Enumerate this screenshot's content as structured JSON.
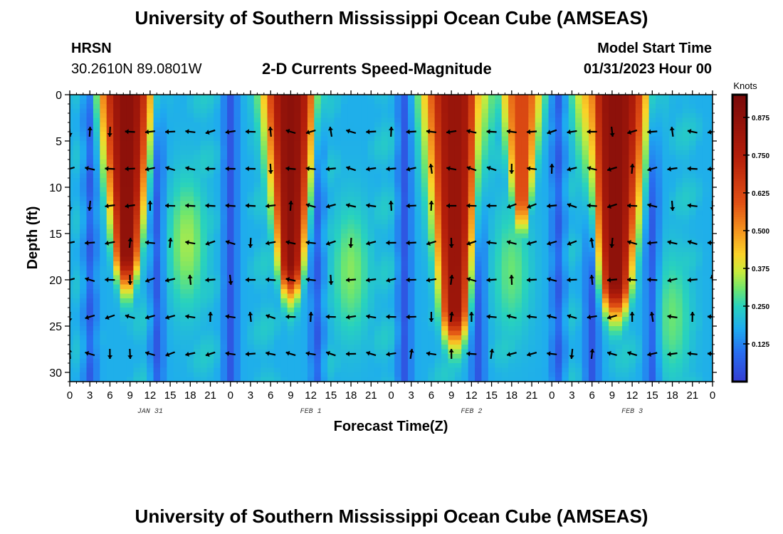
{
  "page": {
    "title": "University of Southern Mississippi Ocean Cube (AMSEAS)",
    "station": "HRSN",
    "coords": "30.2610N  89.0801W",
    "subtitle": "2-D Currents Speed-Magnitude",
    "start_label": "Model Start Time",
    "start_value": "01/31/2023 Hour 00"
  },
  "chart_data": {
    "type": "heatmap",
    "title": "2-D Currents Speed-Magnitude",
    "xlabel": "Forecast Time(Z)",
    "ylabel": "Depth (ft)",
    "xlim": [
      0,
      96
    ],
    "ylim": [
      31,
      0
    ],
    "x_ticks": [
      0,
      3,
      6,
      9,
      12,
      15,
      18,
      21,
      24,
      27,
      30,
      33,
      36,
      39,
      42,
      45,
      48,
      51,
      54,
      57,
      60,
      63,
      66,
      69,
      72,
      75,
      78,
      81,
      84,
      87,
      90,
      93,
      96
    ],
    "x_tick_labels": [
      "0",
      "3",
      "6",
      "9",
      "12",
      "15",
      "18",
      "21",
      "0",
      "3",
      "6",
      "9",
      "12",
      "15",
      "18",
      "21",
      "0",
      "3",
      "6",
      "9",
      "12",
      "15",
      "18",
      "21",
      "0",
      "3",
      "6",
      "9",
      "12",
      "15",
      "18",
      "21",
      "0"
    ],
    "y_ticks": [
      0,
      5,
      10,
      15,
      20,
      25,
      30
    ],
    "y_tick_labels": [
      "0",
      "5",
      "10",
      "15",
      "20",
      "25",
      "30"
    ],
    "day_labels": [
      {
        "text": "JAN 31",
        "hour": 12
      },
      {
        "text": "FEB 1",
        "hour": 36
      },
      {
        "text": "FEB 2",
        "hour": 60
      },
      {
        "text": "FEB 3",
        "hour": 84
      }
    ],
    "colorbar": {
      "label": "Knots",
      "min": 0.0,
      "max": 0.95,
      "ticks": [
        0.125,
        0.25,
        0.375,
        0.5,
        0.625,
        0.75,
        0.875
      ],
      "tick_labels": [
        "0.125",
        "0.250",
        "0.375",
        "0.500",
        "0.625",
        "0.750",
        "0.875"
      ]
    },
    "cells_per_hour": 1,
    "depth_step_ft": 0.5,
    "high_speed_events": [
      {
        "center_hour": 8.5,
        "surface_half_width_hours": 4.0,
        "depth_ft": 17,
        "peak_knots": 0.88
      },
      {
        "center_hour": 33.0,
        "surface_half_width_hours": 4.0,
        "depth_ft": 18,
        "peak_knots": 0.88
      },
      {
        "center_hour": 57.5,
        "surface_half_width_hours": 4.5,
        "depth_ft": 23,
        "peak_knots": 0.84
      },
      {
        "center_hour": 67.5,
        "surface_half_width_hours": 3.0,
        "depth_ft": 11,
        "peak_knots": 0.62
      },
      {
        "center_hour": 81.5,
        "surface_half_width_hours": 5.0,
        "depth_ft": 20,
        "peak_knots": 0.88
      }
    ],
    "midwater_events": [
      {
        "center_hour": 17.5,
        "depth_ft": 16,
        "peak_knots": 0.34
      },
      {
        "center_hour": 42.0,
        "depth_ft": 19,
        "peak_knots": 0.32
      },
      {
        "center_hour": 66.0,
        "depth_ft": 19,
        "peak_knots": 0.3
      },
      {
        "center_hour": 90.0,
        "depth_ft": 24,
        "peak_knots": 0.3
      }
    ],
    "low_speed_bands": [
      3.0,
      13.0,
      24.0,
      37.0,
      50.0,
      61.0,
      73.0,
      78.0,
      87.0
    ],
    "arrow_hours": [
      0,
      3,
      6,
      9,
      12,
      15,
      18,
      21,
      24,
      27,
      30,
      33,
      36,
      39,
      42,
      45,
      48,
      51,
      54,
      57,
      60,
      63,
      66,
      69,
      72,
      75,
      78,
      81,
      84,
      87,
      90,
      93,
      96
    ],
    "arrow_depths_ft": [
      4,
      8,
      12,
      16,
      20,
      24,
      28
    ],
    "arrow_direction_note": "mostly westward (left-pointing), with scattered northward and southward vectors"
  }
}
